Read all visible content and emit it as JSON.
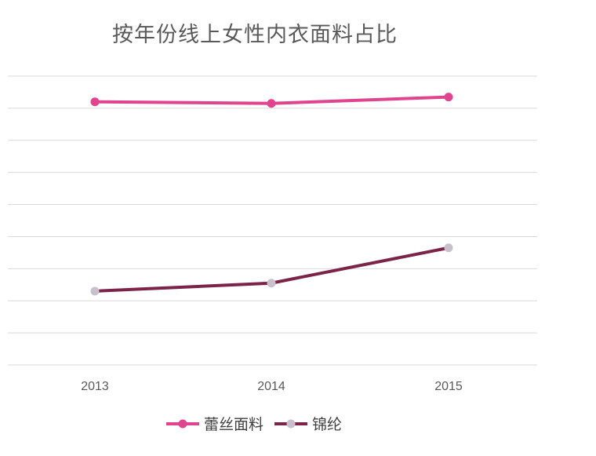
{
  "chart_data": {
    "type": "line",
    "title": "按年份线上女性内衣面料占比",
    "x": [
      "2013",
      "2014",
      "2015"
    ],
    "series": [
      {
        "name": "蕾丝面料",
        "values": [
          0.82,
          0.815,
          0.835
        ],
        "line_color": "#e0448f",
        "marker_color": "#e0448f"
      },
      {
        "name": "锦纶",
        "values": [
          0.23,
          0.255,
          0.365
        ],
        "line_color": "#7b2348",
        "marker_color": "#c8c0cc"
      }
    ],
    "ylim": [
      0,
      0.9
    ],
    "yticks_shown": false,
    "grid": true,
    "grid_lines": 9,
    "legend": "bottom",
    "xlabel": "",
    "ylabel": ""
  }
}
